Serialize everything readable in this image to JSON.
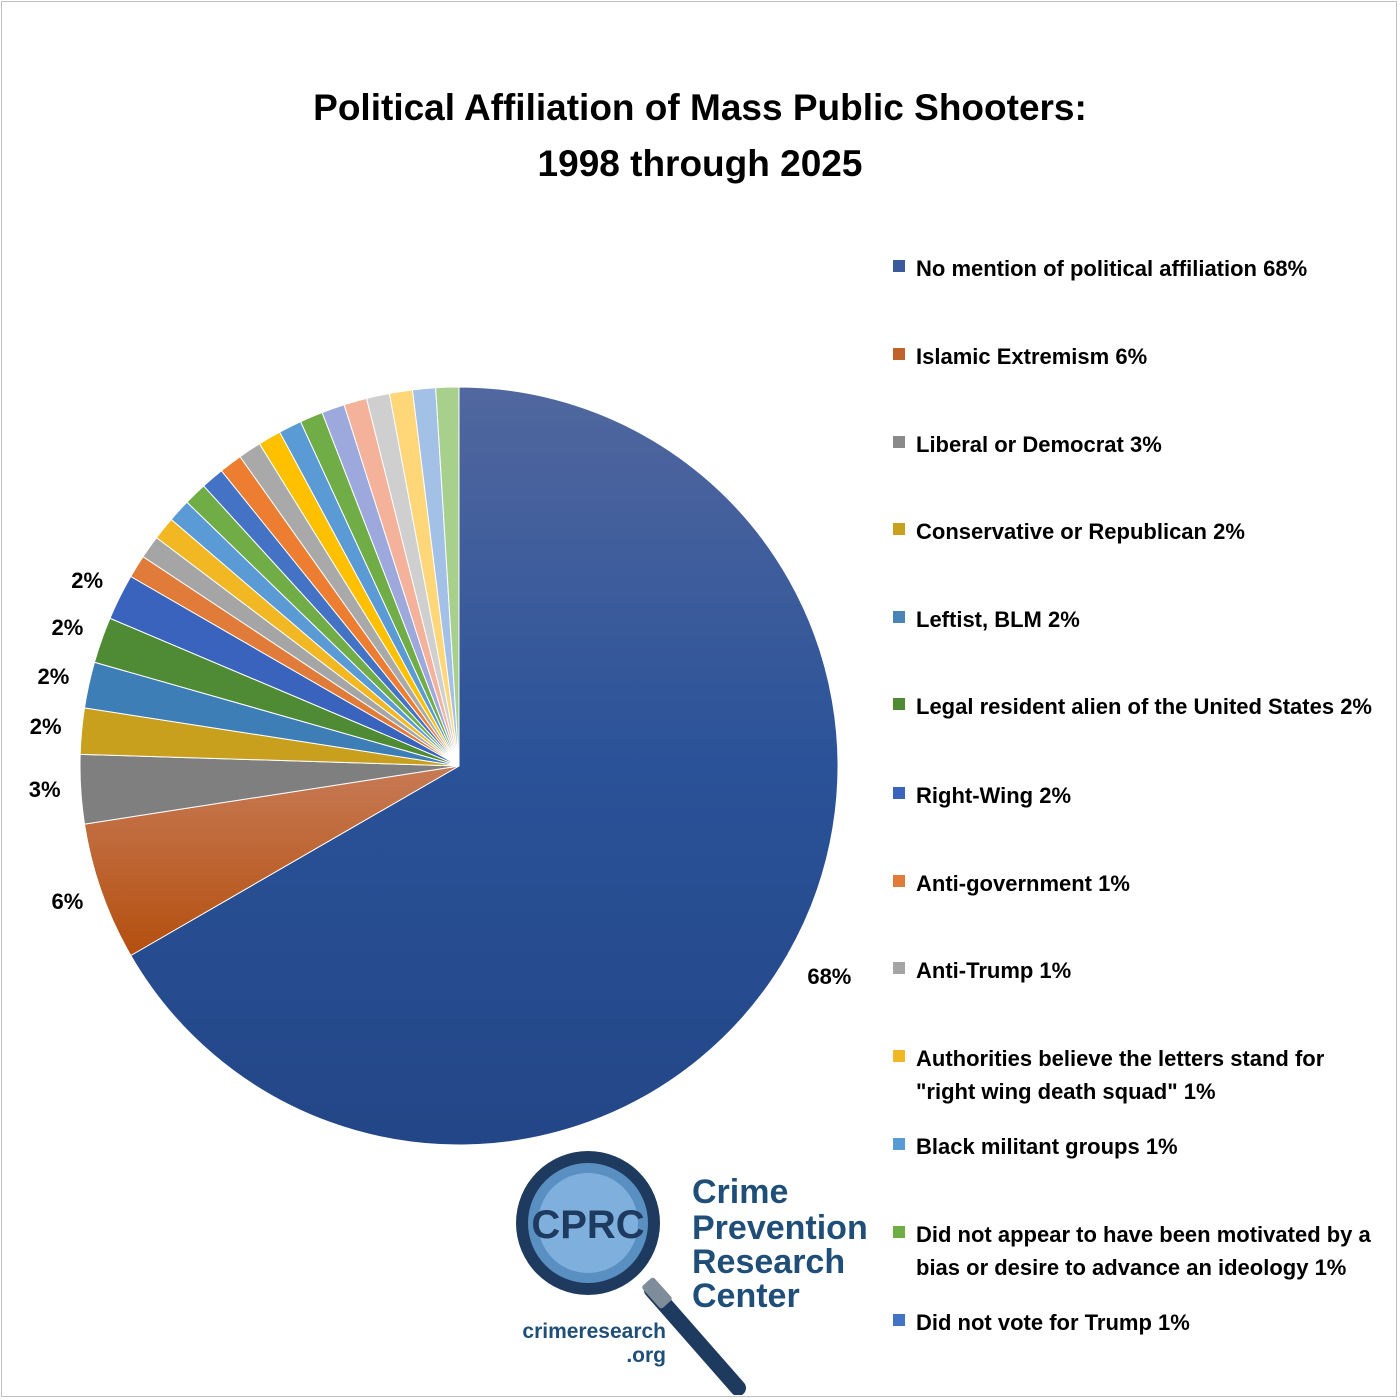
{
  "chart_data": {
    "type": "pie",
    "title": "Political Affiliation of Mass Public Shooters:",
    "subtitle": "1998 through 2025",
    "legend_position": "right",
    "slices": [
      {
        "label": "No mention of political affiliation 68%",
        "value": 68,
        "data_label": "68%",
        "color": "#2e519a",
        "legend_color": "#3a5a9c"
      },
      {
        "label": "Islamic Extremism 6%",
        "value": 6,
        "data_label": "6%",
        "color": "#c0622a",
        "legend_color": "#c0622a"
      },
      {
        "label": "Liberal or Democrat 3%",
        "value": 3,
        "data_label": "3%",
        "color": "#7f7f7f",
        "legend_color": "#8a8a8a"
      },
      {
        "label": "Conservative or Republican 2%",
        "value": 2,
        "data_label": "2%",
        "color": "#c9a01e",
        "legend_color": "#c9a01e"
      },
      {
        "label": "Leftist, BLM 2%",
        "value": 2,
        "data_label": "2%",
        "color": "#3c7eb5",
        "legend_color": "#4a84b6"
      },
      {
        "label": "Legal resident alien of the United States 2%",
        "value": 2,
        "data_label": "2%",
        "color": "#4f8a35",
        "legend_color": "#4f8a35"
      },
      {
        "label": "Right-Wing 2%",
        "value": 2,
        "data_label": "2%",
        "color": "#3a63bd",
        "legend_color": "#3a63bd"
      },
      {
        "label": "Anti-government 1%",
        "value": 1,
        "data_label": "",
        "color": "#e07b39",
        "legend_color": "#e07b39"
      },
      {
        "label": "Anti-Trump  1%",
        "value": 1,
        "data_label": "",
        "color": "#a5a5a5",
        "legend_color": "#a5a5a5"
      },
      {
        "label": "Authorities believe the letters stand for \"right wing death squad\" 1%",
        "value": 1,
        "data_label": "",
        "color": "#f2b823",
        "legend_color": "#f2b823"
      },
      {
        "label": "Black militant groups 1%",
        "value": 1,
        "data_label": "",
        "color": "#5b9bd5",
        "legend_color": "#5b9bd5"
      },
      {
        "label": "Did not appear to have been motivated by a bias or desire to advance an ideology 1%",
        "value": 1,
        "data_label": "",
        "color": "#70ad47",
        "legend_color": "#70ad47"
      },
      {
        "label": "Did not vote for Trump 1%",
        "value": 1,
        "data_label": "",
        "color": "#4472c4",
        "legend_color": "#4472c4"
      },
      {
        "label": "",
        "value": 1,
        "data_label": "",
        "color": "#ed7d31",
        "legend_color": "#ed7d31"
      },
      {
        "label": "",
        "value": 1,
        "data_label": "",
        "color": "#a9a9a9",
        "legend_color": "#a9a9a9"
      },
      {
        "label": "",
        "value": 1,
        "data_label": "",
        "color": "#ffc000",
        "legend_color": "#ffc000"
      },
      {
        "label": "",
        "value": 1,
        "data_label": "",
        "color": "#5b9bd5",
        "legend_color": "#5b9bd5"
      },
      {
        "label": "",
        "value": 1,
        "data_label": "",
        "color": "#70ad47",
        "legend_color": "#70ad47"
      },
      {
        "label": "",
        "value": 1,
        "data_label": "",
        "color": "#9da9dc",
        "legend_color": "#9da9dc"
      },
      {
        "label": "",
        "value": 1,
        "data_label": "",
        "color": "#f4b29a",
        "legend_color": "#f4b29a"
      },
      {
        "label": "",
        "value": 1,
        "data_label": "",
        "color": "#cfcfcf",
        "legend_color": "#cfcfcf"
      },
      {
        "label": "",
        "value": 1,
        "data_label": "",
        "color": "#ffd778",
        "legend_color": "#ffd778"
      },
      {
        "label": "",
        "value": 1,
        "data_label": "",
        "color": "#a3c0e6",
        "legend_color": "#a3c0e6"
      },
      {
        "label": "",
        "value": 1,
        "data_label": "",
        "color": "#a8d08d",
        "legend_color": "#a8d08d"
      }
    ]
  },
  "logo": {
    "badge": "CPRC",
    "name_lines": [
      "Crime",
      "Prevention",
      "Research",
      "Center"
    ],
    "url_lines": [
      "crimeresearch",
      ".org"
    ],
    "color": "#1f4e79",
    "badge_fill": "#6fa3d2"
  }
}
